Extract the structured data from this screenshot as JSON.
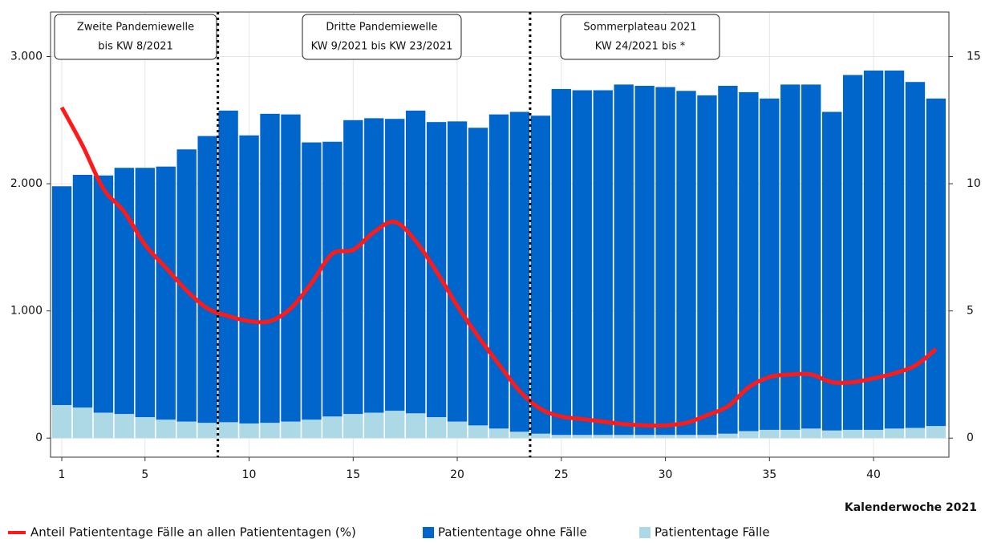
{
  "chart_data": {
    "type": "bar",
    "x_label": "Kalenderwoche 2021",
    "x": [
      1,
      2,
      3,
      4,
      5,
      6,
      7,
      8,
      9,
      10,
      11,
      12,
      13,
      14,
      15,
      16,
      17,
      18,
      19,
      20,
      21,
      22,
      23,
      24,
      25,
      26,
      27,
      28,
      29,
      30,
      31,
      32,
      33,
      34,
      35,
      36,
      37,
      38,
      39,
      40,
      41,
      42,
      43
    ],
    "xlim": [
      0.46,
      43.62
    ],
    "xticks": [
      1,
      5,
      10,
      15,
      20,
      25,
      30,
      35,
      40
    ],
    "ylim": [
      -150,
      3350
    ],
    "yticks": [
      0,
      {
        "value": 1000,
        "label": "1.000"
      },
      {
        "value": 2000,
        "label": "2.000"
      },
      {
        "value": 3000,
        "label": "3.000"
      }
    ],
    "y2lim": [
      -0.75,
      16.75
    ],
    "y2ticks": [
      0,
      5,
      10,
      15
    ],
    "grid": true,
    "stacked": true,
    "legend": "bottom",
    "dividers": [
      8.5,
      23.5
    ],
    "annotations": [
      {
        "lines": [
          "Zweite Pandemiewelle",
          "bis KW 8/2021"
        ]
      },
      {
        "lines": [
          "Dritte Pandemiewelle",
          "KW 9/2021 bis KW 23/2021"
        ]
      },
      {
        "lines": [
          "Sommerplateau 2021",
          "KW 24/2021 bis *"
        ]
      }
    ],
    "series": [
      {
        "name": "Anteil Patiententage Fälle an allen Patiententagen (%)",
        "type": "line",
        "axis": "y2",
        "color": "#ff1a1a",
        "values": [
          13.0,
          11.5,
          9.8,
          8.9,
          7.6,
          6.7,
          5.8,
          5.1,
          4.8,
          4.6,
          4.6,
          5.1,
          6.1,
          7.25,
          7.4,
          8.1,
          8.5,
          7.75,
          6.55,
          5.2,
          4.0,
          2.9,
          1.85,
          1.15,
          0.85,
          0.75,
          0.65,
          0.55,
          0.5,
          0.5,
          0.6,
          0.9,
          1.25,
          2.0,
          2.4,
          2.5,
          2.5,
          2.2,
          2.2,
          2.35,
          2.55,
          2.85,
          3.5
        ]
      },
      {
        "name": "Patiententage ohne Fälle",
        "type": "bar",
        "color": "#0066cc",
        "values": [
          1720,
          1830,
          1865,
          1935,
          1960,
          1990,
          2140,
          2255,
          2450,
          2265,
          2430,
          2415,
          2180,
          2160,
          2310,
          2315,
          2295,
          2380,
          2320,
          2360,
          2340,
          2470,
          2515,
          2500,
          2720,
          2710,
          2710,
          2755,
          2745,
          2735,
          2705,
          2670,
          2735,
          2665,
          2605,
          2715,
          2705,
          2505,
          2790,
          2825,
          2815,
          2720,
          2575
        ]
      },
      {
        "name": "Patiententage Fälle",
        "type": "bar",
        "color": "#add8e6",
        "values": [
          260,
          240,
          200,
          190,
          165,
          145,
          130,
          120,
          125,
          115,
          120,
          130,
          145,
          170,
          190,
          200,
          215,
          195,
          165,
          130,
          100,
          75,
          50,
          35,
          25,
          25,
          25,
          25,
          25,
          25,
          25,
          25,
          35,
          55,
          65,
          65,
          75,
          60,
          65,
          65,
          75,
          80,
          95
        ]
      }
    ]
  }
}
